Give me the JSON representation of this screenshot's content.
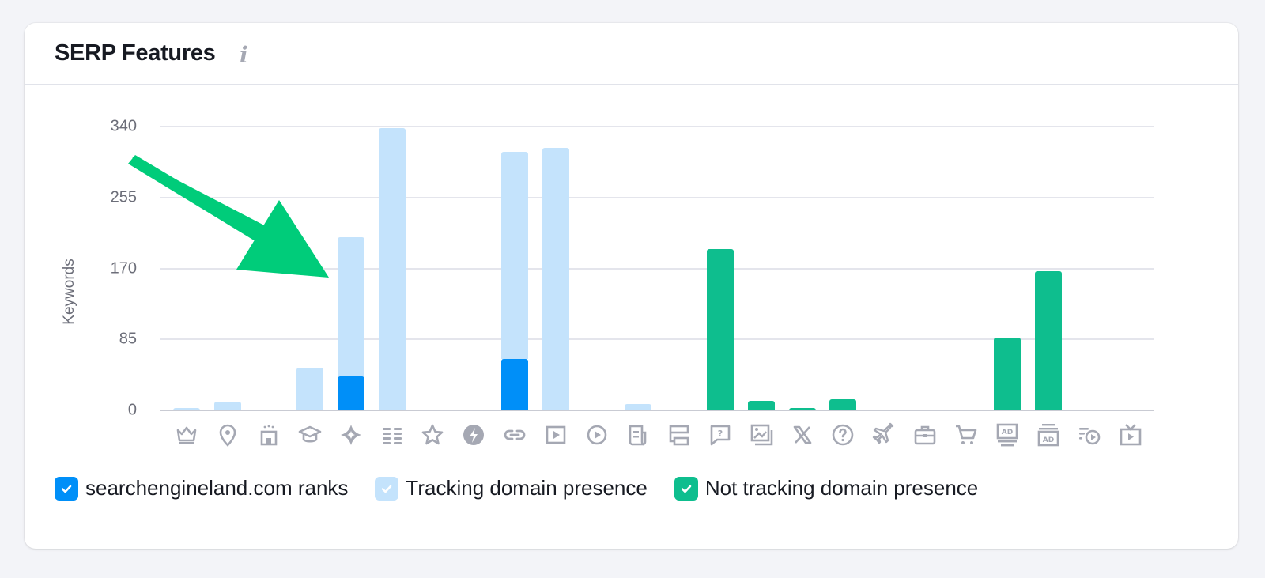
{
  "card": {
    "title": "SERP Features",
    "info_icon": "i"
  },
  "colors": {
    "ranks": "#008ff8",
    "tracking": "#c4e3fc",
    "not_tracking": "#0ebe8e",
    "annotation_arrow": "#00cc7a",
    "icon": "#a5a8b3"
  },
  "chart_data": {
    "type": "bar",
    "stacked": true,
    "title": "SERP Features",
    "xlabel": "",
    "ylabel": "Keywords",
    "ylim": [
      0,
      340
    ],
    "yticks": [
      0,
      85,
      170,
      255,
      340
    ],
    "grid": true,
    "legend_position": "bottom-left",
    "categories": [
      "Featured snippet",
      "Local pack",
      "Hotels pack",
      "Knowledge panel",
      "AI Overview",
      "Reviews / List",
      "Review stars",
      "AMP",
      "Sitelinks",
      "Video",
      "Featured video",
      "Top stories",
      "Related searches",
      "People also ask",
      "Image pack",
      "X (Twitter)",
      "FAQ",
      "Flights",
      "Jobs",
      "Shopping ads",
      "Top ads",
      "Bottom ads",
      "Video carousel",
      "TV"
    ],
    "category_icons": [
      "crown-icon",
      "map-pin-icon",
      "hotel-icon",
      "graduation-cap-icon",
      "ai-sparkle-icon",
      "list-icon",
      "star-icon",
      "lightning-icon",
      "link-icon",
      "video-square-icon",
      "play-circle-icon",
      "news-icon",
      "layout-icon",
      "question-bubble-icon",
      "image-gallery-icon",
      "x-logo-icon",
      "question-circle-icon",
      "airplane-icon",
      "briefcase-icon",
      "cart-icon",
      "ad-top-icon",
      "ad-bottom-icon",
      "video-list-icon",
      "tv-icon"
    ],
    "series": [
      {
        "name": "searchengineland.com ranks",
        "color": "#008ff8",
        "values": [
          0,
          0,
          0,
          0,
          41,
          0,
          0,
          0,
          62,
          0,
          0,
          0,
          0,
          0,
          0,
          0,
          0,
          0,
          0,
          0,
          0,
          0,
          0,
          0
        ]
      },
      {
        "name": "Tracking domain presence",
        "color": "#c4e3fc",
        "values": [
          3,
          10,
          0,
          51,
          166,
          338,
          0,
          0,
          248,
          314,
          0,
          8,
          0,
          0,
          0,
          0,
          0,
          0,
          0,
          0,
          0,
          0,
          0,
          0
        ]
      },
      {
        "name": "Not tracking domain presence",
        "color": "#0ebe8e",
        "values": [
          0,
          0,
          0,
          0,
          0,
          0,
          0,
          0,
          0,
          0,
          0,
          0,
          0,
          193,
          11,
          3,
          13,
          0,
          0,
          0,
          87,
          167,
          0,
          0
        ]
      }
    ],
    "annotations": [
      {
        "type": "arrow",
        "color": "#00cc7a",
        "points_to": "AI Overview"
      }
    ]
  },
  "legend": [
    {
      "label": "searchengineland.com ranks",
      "checked": true
    },
    {
      "label": "Tracking domain presence",
      "checked": true
    },
    {
      "label": "Not tracking domain presence",
      "checked": true
    }
  ]
}
